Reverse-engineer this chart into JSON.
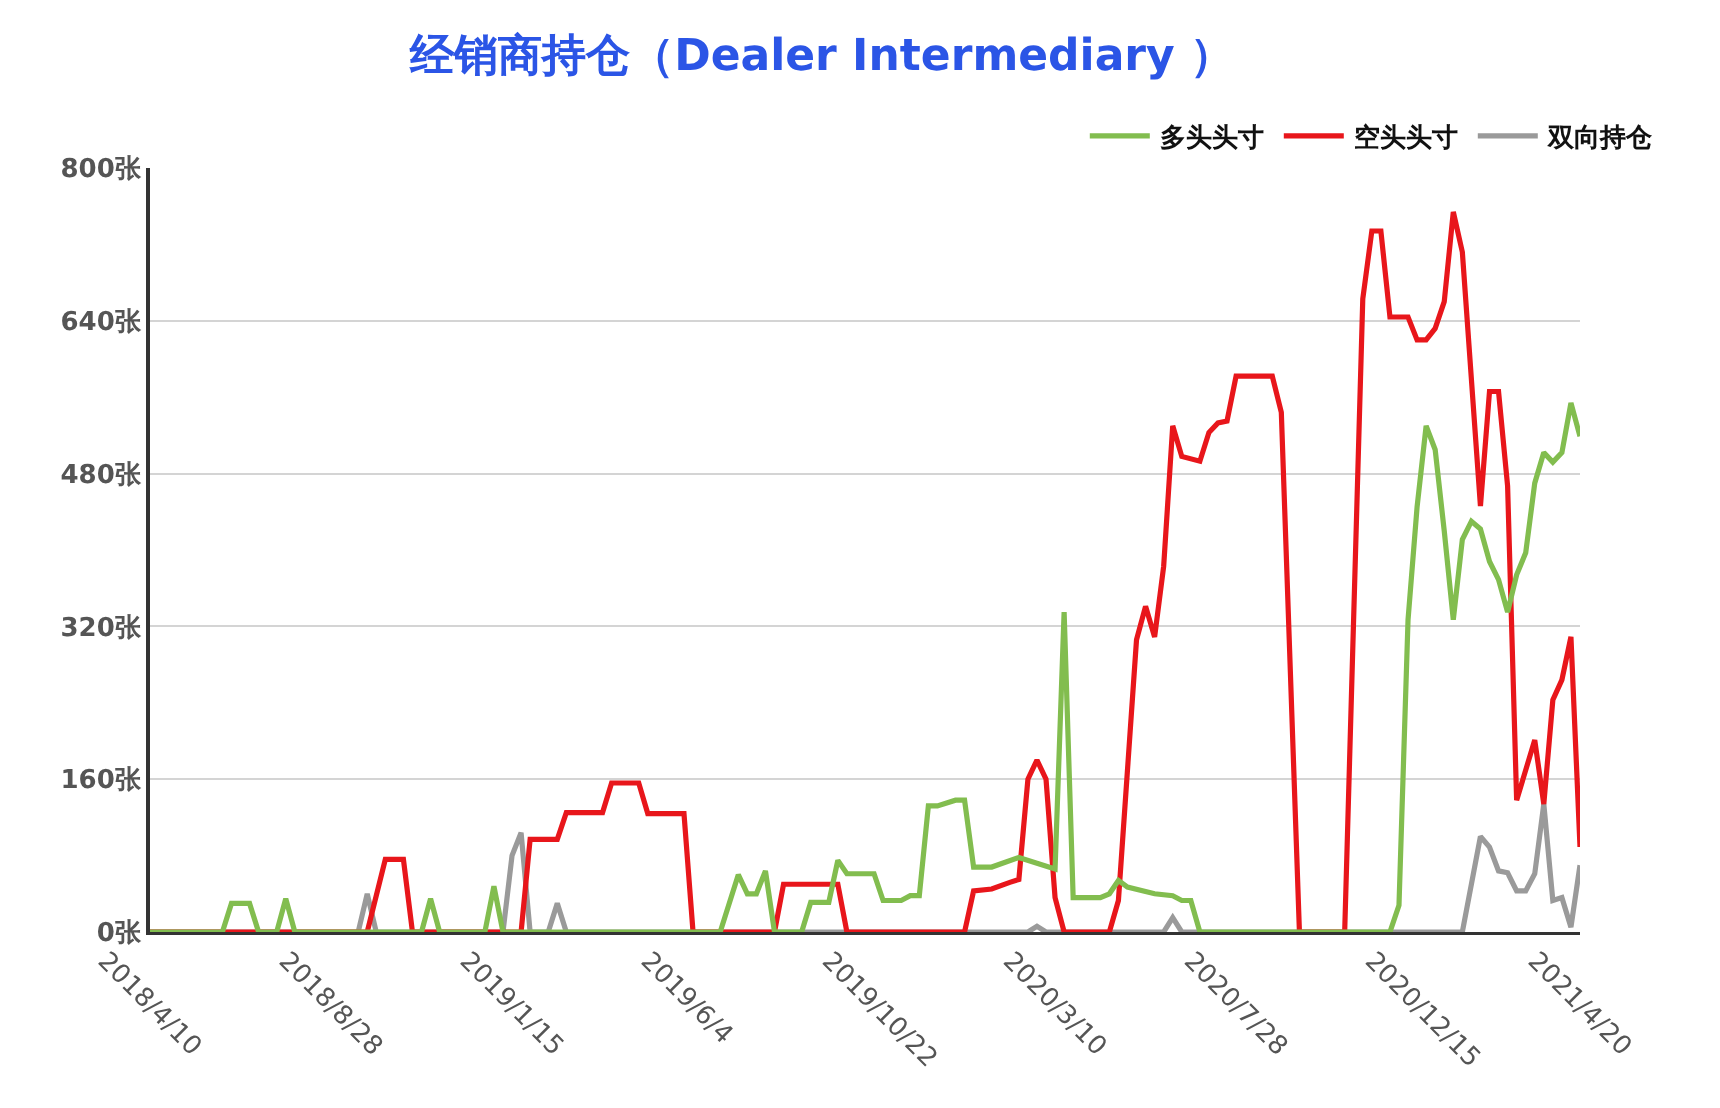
{
  "chart_data": {
    "type": "line",
    "title": "经销商持仓（Dealer Intermediary ）",
    "xlim": [
      "2018-04-10",
      "2021-04-20"
    ],
    "xticks": [
      {
        "value": "2018-04-10",
        "label": "2018/4/10"
      },
      {
        "value": "2018-08-28",
        "label": "2018/8/28"
      },
      {
        "value": "2019-01-15",
        "label": "2019/1/15"
      },
      {
        "value": "2019-06-04",
        "label": "2019/6/4"
      },
      {
        "value": "2019-10-22",
        "label": "2019/10/22"
      },
      {
        "value": "2020-03-10",
        "label": "2020/3/10"
      },
      {
        "value": "2020-07-28",
        "label": "2020/7/28"
      },
      {
        "value": "2020-12-15",
        "label": "2020/12/15"
      },
      {
        "value": "2021-04-20",
        "label": "2021/4/20"
      }
    ],
    "ylim": [
      0,
      800
    ],
    "yticks": [
      {
        "value": 0,
        "label": "0张"
      },
      {
        "value": 160,
        "label": "160张"
      },
      {
        "value": 320,
        "label": "320张"
      },
      {
        "value": 480,
        "label": "480张"
      },
      {
        "value": 640,
        "label": "640张"
      },
      {
        "value": 800,
        "label": "800张"
      }
    ],
    "grid": "y",
    "legend": "top right",
    "line_style": "solid",
    "series": [
      {
        "name": "多头头寸",
        "color": "#82bd4f",
        "x": [
          "2018-04-10",
          "2018-06-05",
          "2018-06-12",
          "2018-06-26",
          "2018-07-03",
          "2018-07-17",
          "2018-07-24",
          "2018-07-31",
          "2018-11-06",
          "2018-11-13",
          "2018-11-20",
          "2018-12-25",
          "2019-01-01",
          "2019-01-08",
          "2019-06-25",
          "2019-07-09",
          "2019-07-16",
          "2019-07-23",
          "2019-07-30",
          "2019-08-06",
          "2019-08-27",
          "2019-09-03",
          "2019-09-17",
          "2019-09-24",
          "2019-10-01",
          "2019-10-22",
          "2019-10-29",
          "2019-11-12",
          "2019-11-19",
          "2019-11-26",
          "2019-12-03",
          "2019-12-10",
          "2019-12-24",
          "2019-12-31",
          "2020-01-07",
          "2020-01-21",
          "2020-02-11",
          "2020-03-10",
          "2020-03-17",
          "2020-03-24",
          "2020-04-14",
          "2020-04-21",
          "2020-04-28",
          "2020-05-05",
          "2020-05-26",
          "2020-06-09",
          "2020-06-16",
          "2020-06-23",
          "2020-06-30",
          "2020-11-24",
          "2020-12-01",
          "2020-12-08",
          "2020-12-15",
          "2020-12-22",
          "2020-12-29",
          "2021-01-05",
          "2021-01-12",
          "2021-01-19",
          "2021-01-26",
          "2021-02-02",
          "2021-02-09",
          "2021-02-16",
          "2021-02-23",
          "2021-03-02",
          "2021-03-09",
          "2021-03-16",
          "2021-03-23",
          "2021-03-30",
          "2021-04-06",
          "2021-04-13",
          "2021-04-20"
        ],
        "values": [
          0,
          0,
          30,
          30,
          0,
          0,
          35,
          0,
          0,
          35,
          0,
          0,
          48,
          0,
          0,
          60,
          40,
          40,
          64,
          0,
          0,
          31,
          31,
          75,
          61,
          61,
          33,
          33,
          38,
          38,
          132,
          132,
          138,
          138,
          68,
          68,
          78,
          66,
          335,
          36,
          36,
          40,
          54,
          47,
          40,
          38,
          33,
          33,
          0,
          0,
          28,
          327,
          445,
          530,
          505,
          420,
          327,
          411,
          430,
          422,
          388,
          369,
          335,
          374,
          397,
          470,
          502,
          492,
          502,
          554,
          519
        ]
      },
      {
        "name": "空头头寸",
        "color": "#e8161b",
        "x": [
          "2018-04-10",
          "2018-09-25",
          "2018-10-09",
          "2018-10-23",
          "2018-10-30",
          "2019-01-22",
          "2019-01-29",
          "2019-02-19",
          "2019-02-26",
          "2019-03-26",
          "2019-04-02",
          "2019-04-23",
          "2019-04-30",
          "2019-05-28",
          "2019-06-04",
          "2019-08-06",
          "2019-08-13",
          "2019-09-24",
          "2019-10-01",
          "2019-12-31",
          "2020-01-07",
          "2020-01-21",
          "2020-02-04",
          "2020-02-11",
          "2020-02-18",
          "2020-02-25",
          "2020-03-03",
          "2020-03-10",
          "2020-03-17",
          "2020-04-21",
          "2020-04-28",
          "2020-05-12",
          "2020-05-19",
          "2020-05-26",
          "2020-06-02",
          "2020-06-09",
          "2020-06-16",
          "2020-06-30",
          "2020-07-07",
          "2020-07-14",
          "2020-07-21",
          "2020-07-28",
          "2020-08-25",
          "2020-09-01",
          "2020-09-15",
          "2020-10-20",
          "2020-11-03",
          "2020-11-10",
          "2020-11-17",
          "2020-11-24",
          "2020-12-08",
          "2020-12-15",
          "2020-12-22",
          "2020-12-29",
          "2021-01-05",
          "2021-01-12",
          "2021-01-19",
          "2021-02-02",
          "2021-02-09",
          "2021-02-16",
          "2021-02-23",
          "2021-03-02",
          "2021-03-16",
          "2021-03-23",
          "2021-03-30",
          "2021-04-06",
          "2021-04-13",
          "2021-04-20"
        ],
        "values": [
          0,
          0,
          76,
          76,
          0,
          0,
          97,
          97,
          125,
          125,
          156,
          156,
          124,
          124,
          0,
          0,
          50,
          50,
          0,
          0,
          43,
          45,
          52,
          55,
          160,
          180,
          160,
          36,
          0,
          0,
          33,
          306,
          341,
          309,
          383,
          530,
          498,
          493,
          523,
          533,
          535,
          582,
          582,
          544,
          0,
          0,
          663,
          734,
          734,
          644,
          644,
          620,
          620,
          632,
          660,
          754,
          712,
          446,
          566,
          566,
          467,
          138,
          201,
          134,
          243,
          264,
          309,
          89
        ]
      },
      {
        "name": "双向持仓",
        "color": "#9a9a9a",
        "x": [
          "2018-04-10",
          "2018-09-18",
          "2018-09-25",
          "2018-10-02",
          "2019-01-08",
          "2019-01-15",
          "2019-01-22",
          "2019-01-29",
          "2019-02-12",
          "2019-02-19",
          "2019-02-26",
          "2020-02-18",
          "2020-02-25",
          "2020-03-03",
          "2020-06-02",
          "2020-06-09",
          "2020-06-16",
          "2021-01-19",
          "2021-02-02",
          "2021-02-09",
          "2021-02-16",
          "2021-02-23",
          "2021-03-02",
          "2021-03-09",
          "2021-03-16",
          "2021-03-23",
          "2021-03-30",
          "2021-04-06",
          "2021-04-13",
          "2021-04-20"
        ],
        "values": [
          0,
          0,
          40,
          0,
          0,
          80,
          104,
          0,
          0,
          30,
          0,
          0,
          6,
          0,
          0,
          15,
          0,
          0,
          100,
          89,
          64,
          62,
          43,
          43,
          61,
          134,
          33,
          36,
          5,
          70
        ]
      }
    ]
  }
}
